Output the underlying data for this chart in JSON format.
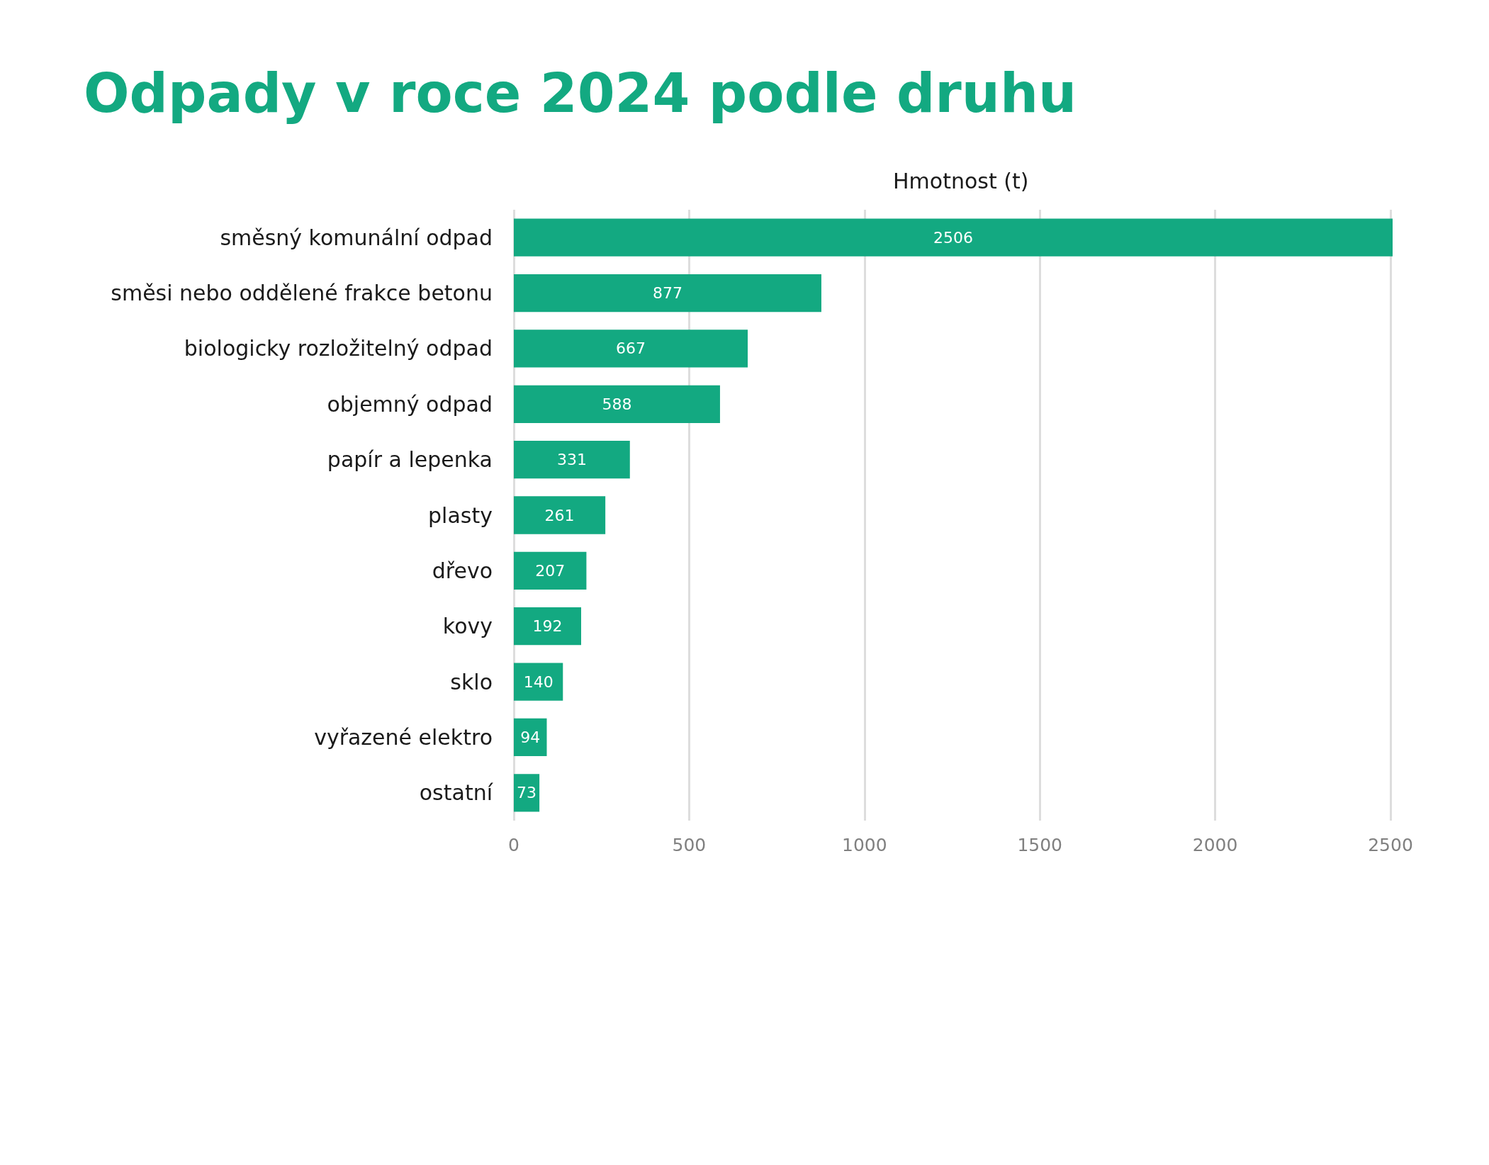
{
  "chart_data": {
    "type": "bar",
    "orientation": "horizontal",
    "title": "Odpady v roce 2024 podle druhu",
    "xlabel": "Hmotnost (t)",
    "categories": [
      "směsný komunální odpad",
      "směsi nebo oddělené frakce betonu",
      "biologicky rozložitelný odpad",
      "objemný odpad",
      "papír a lepenka",
      "plasty",
      "dřevo",
      "kovy",
      "sklo",
      "vyřazené elektro",
      "ostatní"
    ],
    "values": [
      2506,
      877,
      667,
      588,
      331,
      261,
      207,
      192,
      140,
      94,
      73
    ],
    "color": "#13a981",
    "data_labels": true,
    "xlim": [
      0,
      2506
    ],
    "xticks": [
      0,
      500,
      1000,
      1500,
      2000,
      2500
    ],
    "grid": "x"
  }
}
